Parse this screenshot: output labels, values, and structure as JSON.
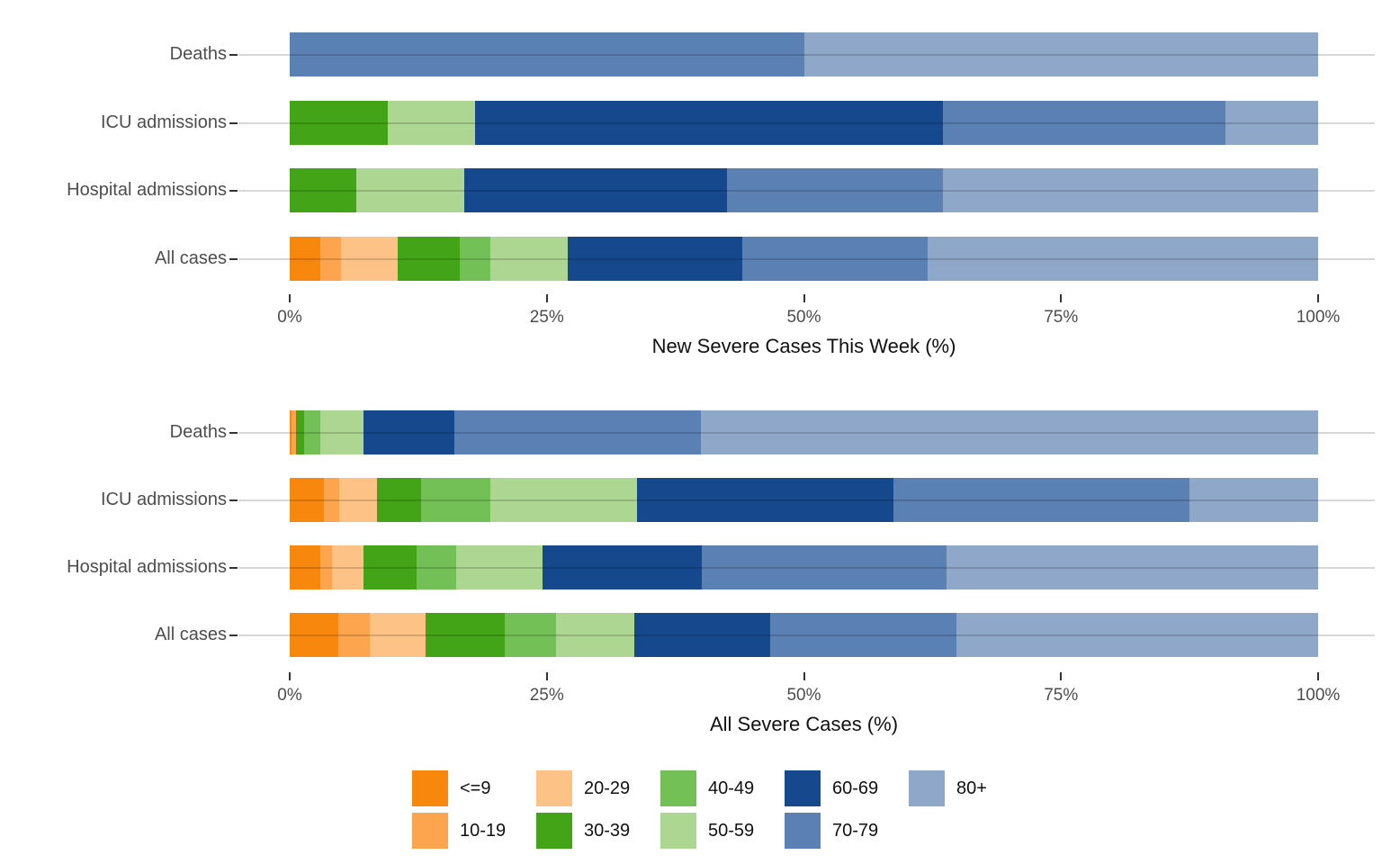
{
  "legend": {
    "entries": [
      {
        "label": "<=9",
        "color": "#F8870E"
      },
      {
        "label": "10-19",
        "color": "#FDA44F"
      },
      {
        "label": "20-29",
        "color": "#FDC386"
      },
      {
        "label": "30-39",
        "color": "#42A416"
      },
      {
        "label": "40-49",
        "color": "#73C156"
      },
      {
        "label": "50-59",
        "color": "#ACD691"
      },
      {
        "label": "60-69",
        "color": "#15488C"
      },
      {
        "label": "70-79",
        "color": "#5B80B4"
      },
      {
        "label": "80+",
        "color": "#8FA8CA"
      }
    ]
  },
  "chart_data": [
    {
      "type": "bar",
      "stacked": true,
      "orientation": "horizontal",
      "xlabel": "New Severe Cases This Week (%)",
      "xlim": [
        0,
        100
      ],
      "x_tick_labels": [
        "0%",
        "25%",
        "50%",
        "75%",
        "100%"
      ],
      "x_tick_values": [
        0,
        25,
        50,
        75,
        100
      ],
      "grid": "horizontal-only",
      "categories": [
        "Deaths",
        "ICU admissions",
        "Hospital admissions",
        "All cases"
      ],
      "series": [
        {
          "name": "<=9",
          "values": [
            0,
            0,
            0,
            3
          ]
        },
        {
          "name": "10-19",
          "values": [
            0,
            0,
            0,
            2
          ]
        },
        {
          "name": "20-29",
          "values": [
            0,
            0,
            0,
            5.5
          ]
        },
        {
          "name": "30-39",
          "values": [
            0,
            9.5,
            6.5,
            6
          ]
        },
        {
          "name": "40-49",
          "values": [
            0,
            0,
            0,
            3
          ]
        },
        {
          "name": "50-59",
          "values": [
            0,
            8.5,
            10.5,
            7.5
          ]
        },
        {
          "name": "60-69",
          "values": [
            0,
            45.5,
            25.5,
            17
          ]
        },
        {
          "name": "70-79",
          "values": [
            50,
            27.5,
            21,
            18
          ]
        },
        {
          "name": "80+",
          "values": [
            50,
            9,
            36.5,
            38
          ]
        }
      ]
    },
    {
      "type": "bar",
      "stacked": true,
      "orientation": "horizontal",
      "xlabel": "All Severe Cases (%)",
      "xlim": [
        0,
        100
      ],
      "x_tick_labels": [
        "0%",
        "25%",
        "50%",
        "75%",
        "100%"
      ],
      "x_tick_values": [
        0,
        25,
        50,
        75,
        100
      ],
      "grid": "horizontal-only",
      "categories": [
        "Deaths",
        "ICU admissions",
        "Hospital admissions",
        "All cases"
      ],
      "series": [
        {
          "name": "<=9",
          "values": [
            0.2,
            3.3,
            3.0,
            4.7
          ]
        },
        {
          "name": "10-19",
          "values": [
            0.4,
            1.5,
            1.1,
            3.1
          ]
        },
        {
          "name": "20-29",
          "values": [
            0,
            3.7,
            3.1,
            5.4
          ]
        },
        {
          "name": "30-39",
          "values": [
            0.8,
            4.3,
            5.1,
            7.7
          ]
        },
        {
          "name": "40-49",
          "values": [
            1.6,
            6.7,
            3.9,
            5.0
          ]
        },
        {
          "name": "50-59",
          "values": [
            4.2,
            14.3,
            8.4,
            7.6
          ]
        },
        {
          "name": "60-69",
          "values": [
            8.8,
            24.9,
            15.5,
            13.2
          ]
        },
        {
          "name": "70-79",
          "values": [
            24,
            28.8,
            23.8,
            18.1
          ]
        },
        {
          "name": "80+",
          "values": [
            60,
            12.5,
            36.1,
            35.2
          ]
        }
      ]
    }
  ]
}
